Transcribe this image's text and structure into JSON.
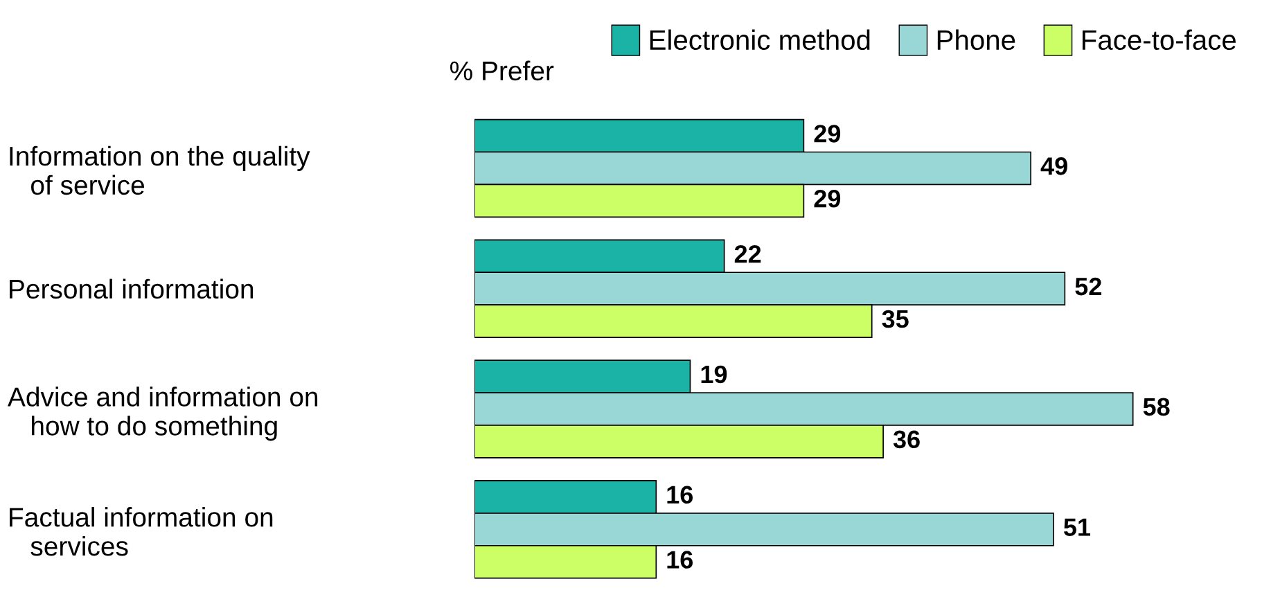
{
  "chart_data": {
    "type": "bar",
    "orientation": "horizontal",
    "xlabel": "% Prefer",
    "categories": [
      "Information on the quality\n   of service",
      "Personal information",
      "Advice and information on\n   how to do something",
      "Factual information on\n   services"
    ],
    "series": [
      {
        "name": "Electronic method",
        "color": "#1ab3a6",
        "values": [
          29,
          22,
          19,
          16
        ]
      },
      {
        "name": "Phone",
        "color": "#99d6d6",
        "values": [
          49,
          52,
          58,
          51
        ]
      },
      {
        "name": "Face-to-face",
        "color": "#ccff66",
        "values": [
          29,
          35,
          36,
          16
        ]
      }
    ],
    "data_labels": true,
    "legend": "top",
    "grid": false,
    "tick_labels": "y"
  }
}
